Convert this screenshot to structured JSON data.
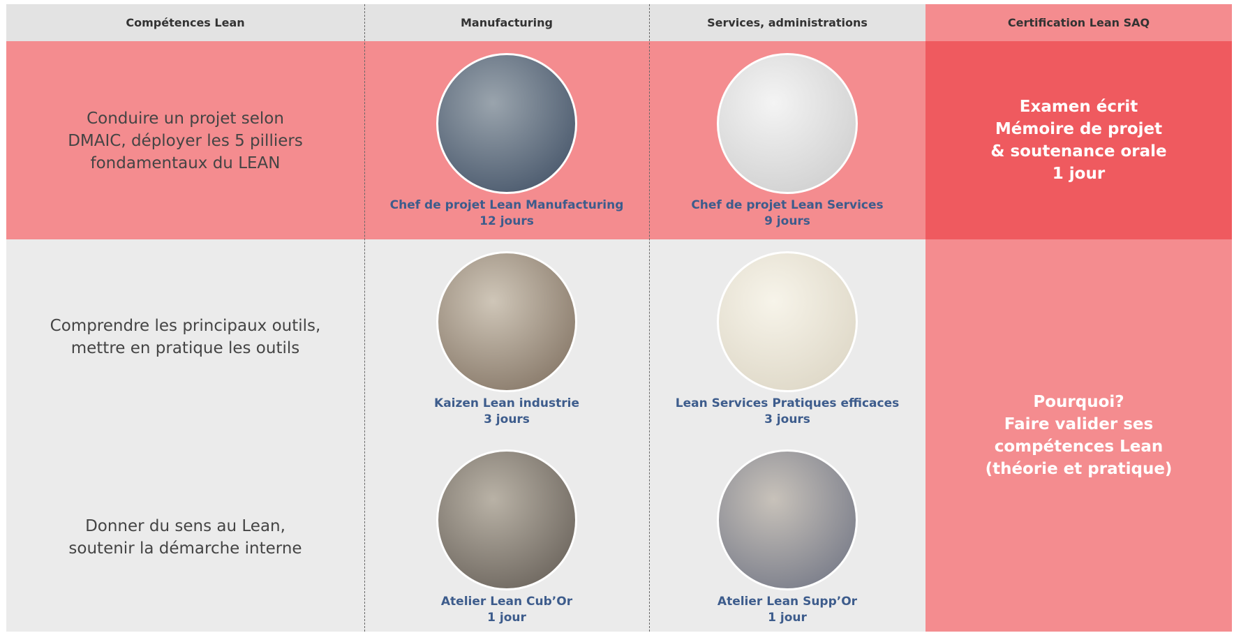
{
  "header": {
    "columns": [
      "Compétences Lean",
      "Manufacturing",
      "Services, administrations",
      "Certification Lean SAQ"
    ]
  },
  "rows": [
    {
      "competence": [
        "Conduire un projet selon",
        "DMAIC, déployer les 5 pilliers",
        "fondamentaux du LEAN"
      ],
      "manufacturing": {
        "title": "Chef de projet Lean Manufacturing",
        "duration": "12 jours"
      },
      "services": {
        "title": "Chef de projet Lean Services",
        "duration": "9 jours"
      }
    },
    {
      "competence": [
        "Comprendre les principaux outils,",
        "mettre en pratique les outils"
      ],
      "manufacturing": {
        "title": "Kaizen Lean industrie",
        "duration": "3 jours"
      },
      "services": {
        "title": "Lean Services Pratiques efficaces",
        "duration": "3 jours"
      }
    },
    {
      "competence": [
        "Donner du sens au Lean,",
        "soutenir la démarche interne"
      ],
      "manufacturing": {
        "title": "Atelier Lean Cub’Or",
        "duration": "1 jour"
      },
      "services": {
        "title": "Atelier Lean Supp’Or",
        "duration": "1 jour"
      }
    }
  ],
  "certification": {
    "exam": [
      "Examen écrit",
      "Mémoire de projet",
      "& soutenance orale",
      "1 jour"
    ],
    "why": [
      "Pourquoi?",
      "Faire valider ses",
      "compétences Lean",
      "(théorie et pratique)"
    ]
  }
}
